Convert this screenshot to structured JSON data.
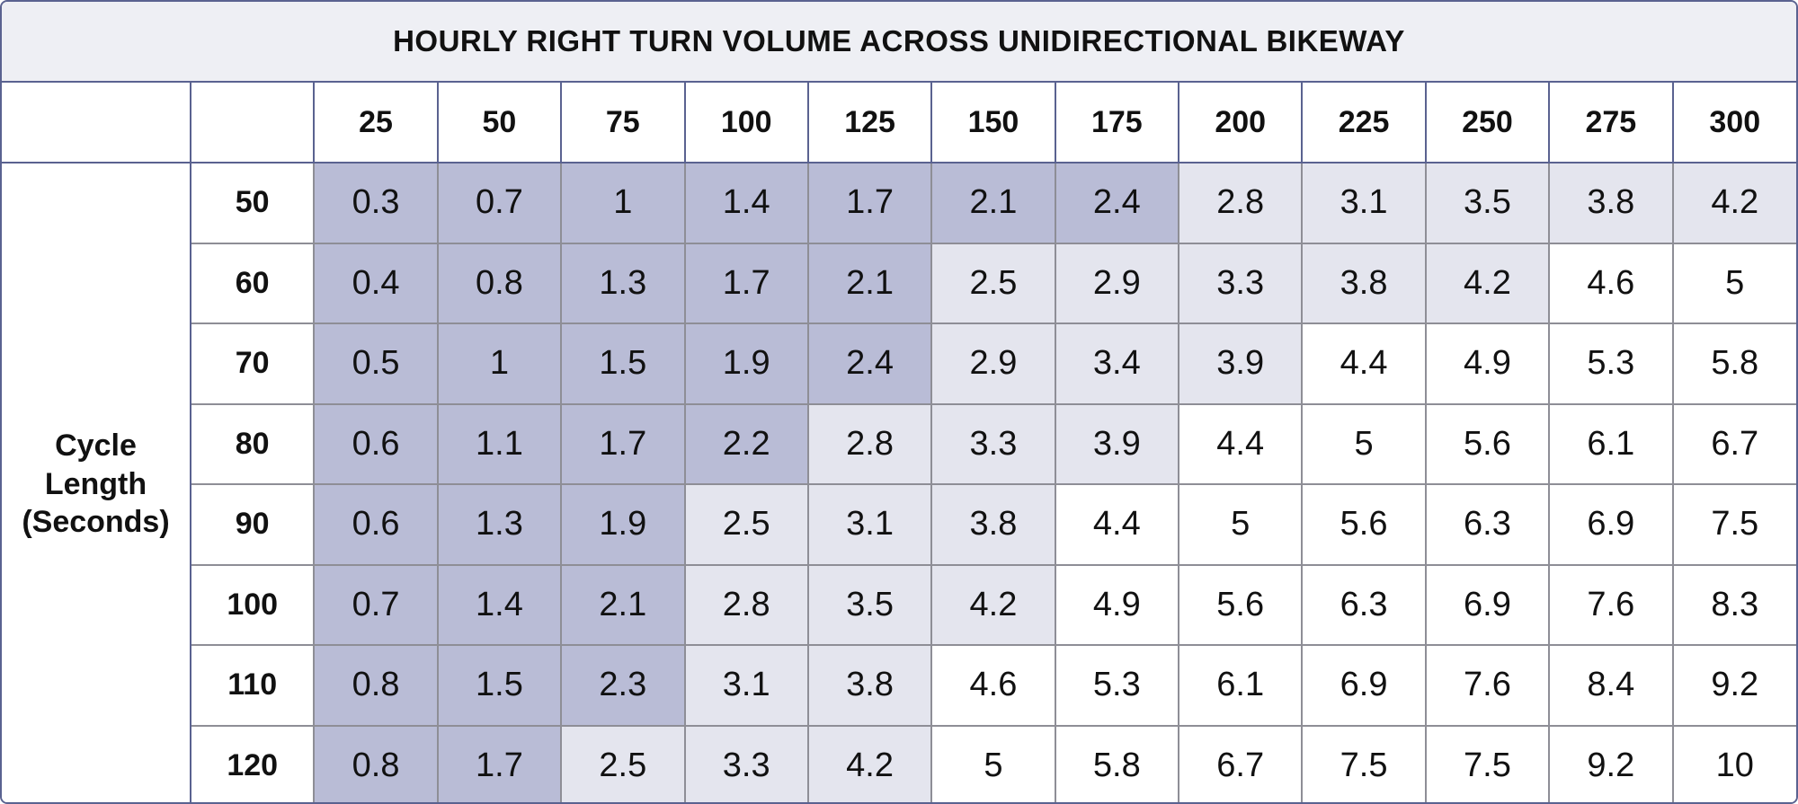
{
  "title": "HOURLY RIGHT TURN VOLUME ACROSS UNIDIRECTIONAL BIKEWAY",
  "table": {
    "column_headers": [
      25,
      50,
      75,
      100,
      125,
      150,
      175,
      200,
      225,
      250,
      275,
      300
    ],
    "row_group_label": "Cycle Length (Seconds)",
    "rows": [
      {
        "header": 50,
        "values": [
          0.3,
          0.7,
          1,
          1.4,
          1.7,
          2.1,
          2.4,
          2.8,
          3.1,
          3.5,
          3.8,
          4.2
        ]
      },
      {
        "header": 60,
        "values": [
          0.4,
          0.8,
          1.3,
          1.7,
          2.1,
          2.5,
          2.9,
          3.3,
          3.8,
          4.2,
          4.6,
          5
        ]
      },
      {
        "header": 70,
        "values": [
          0.5,
          1,
          1.5,
          1.9,
          2.4,
          2.9,
          3.4,
          3.9,
          4.4,
          4.9,
          5.3,
          5.8
        ]
      },
      {
        "header": 80,
        "values": [
          0.6,
          1.1,
          1.7,
          2.2,
          2.8,
          3.3,
          3.9,
          4.4,
          5,
          5.6,
          6.1,
          6.7
        ]
      },
      {
        "header": 90,
        "values": [
          0.6,
          1.3,
          1.9,
          2.5,
          3.1,
          3.8,
          4.4,
          5,
          5.6,
          6.3,
          6.9,
          7.5
        ]
      },
      {
        "header": 100,
        "values": [
          0.7,
          1.4,
          2.1,
          2.8,
          3.5,
          4.2,
          4.9,
          5.6,
          6.3,
          6.9,
          7.6,
          8.3
        ]
      },
      {
        "header": 110,
        "values": [
          0.8,
          1.5,
          2.3,
          3.1,
          3.8,
          4.6,
          5.3,
          6.1,
          6.9,
          7.6,
          8.4,
          9.2
        ]
      },
      {
        "header": 120,
        "values": [
          0.8,
          1.7,
          2.5,
          3.3,
          4.2,
          5,
          5.8,
          6.7,
          7.5,
          7.5,
          9.2,
          10
        ]
      }
    ]
  }
}
